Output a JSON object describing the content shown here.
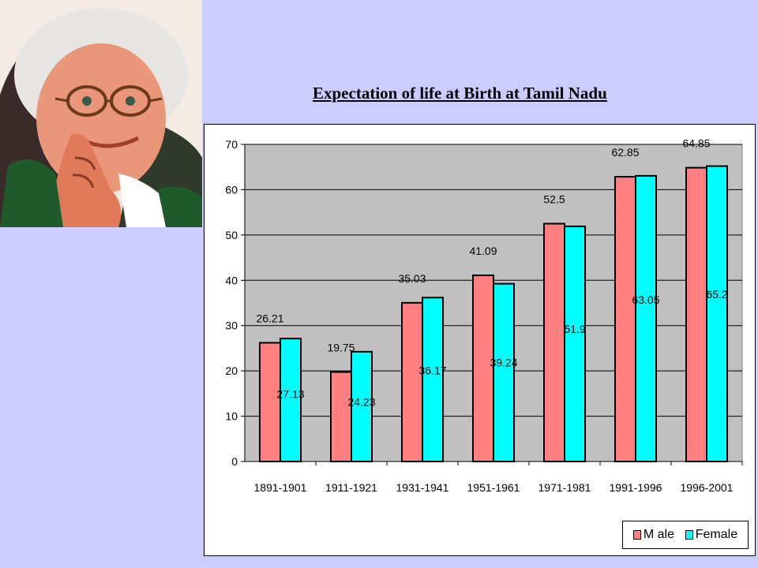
{
  "slide": {
    "title": "Expectation of life at Birth at Tamil Nadu"
  },
  "colors": {
    "background": "#ccccff",
    "plot_area": "#c0c0c0",
    "male": "#ff8080",
    "female": "#00ffff"
  },
  "chart_data": {
    "type": "bar",
    "title": "",
    "xlabel": "",
    "ylabel": "",
    "categories": [
      "1891-1901",
      "1911-1921",
      "1931-1941",
      "1951-1961",
      "1971-1981",
      "1991-1996",
      "1996-2001"
    ],
    "series": [
      {
        "name": "M ale",
        "values": [
          26.21,
          19.75,
          35.03,
          41.09,
          52.5,
          62.85,
          64.85
        ]
      },
      {
        "name": "Female",
        "values": [
          27.13,
          24.23,
          36.17,
          39.24,
          51.9,
          63.05,
          65.2
        ]
      }
    ],
    "y_ticks": [
      "0",
      "10",
      "20",
      "30",
      "40",
      "50",
      "60",
      "70"
    ],
    "ylim": [
      0,
      70
    ],
    "grid": true,
    "legend": "bottom-right"
  }
}
